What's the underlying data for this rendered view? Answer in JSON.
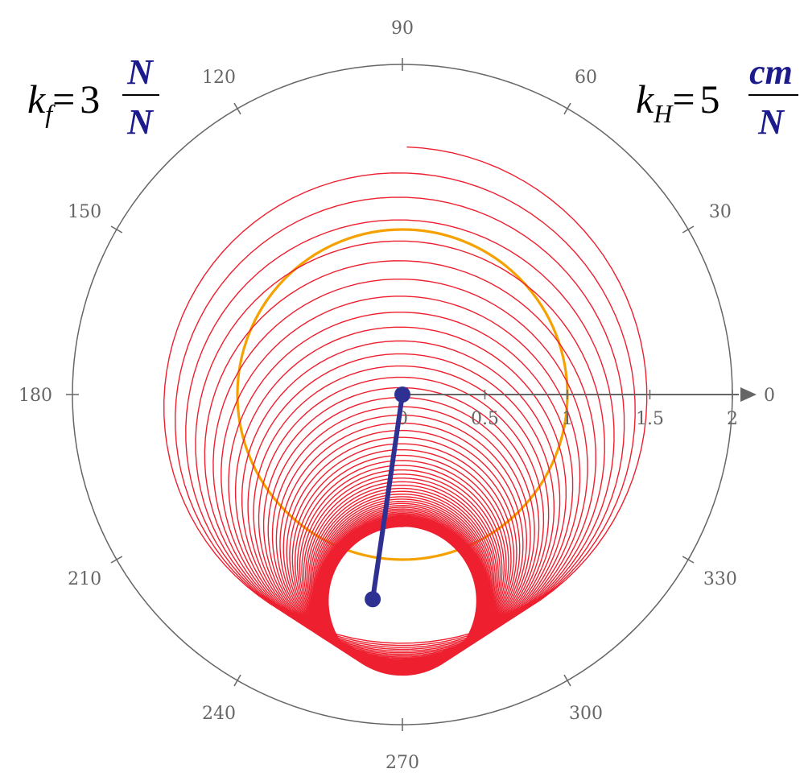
{
  "chart_data": {
    "type": "polar",
    "title": "",
    "formulas": {
      "left": {
        "symbol": "k",
        "subscript": "f",
        "equals": "=",
        "value": "3",
        "unit_numerator": "N",
        "unit_denominator": "N"
      },
      "right": {
        "symbol": "k",
        "subscript": "H",
        "equals": "=",
        "value": "5",
        "unit_numerator": "cm",
        "unit_denominator": "N"
      }
    },
    "angular_ticks_deg": [
      "0",
      "30",
      "60",
      "90",
      "120",
      "150",
      "180",
      "210",
      "240",
      "270",
      "300",
      "330"
    ],
    "radial_ticks": [
      "0",
      "0.5",
      "1",
      "1.5",
      "2"
    ],
    "radial_range": [
      0,
      2
    ],
    "grid": false,
    "reference_circle": {
      "center": [
        0,
        0
      ],
      "radius": 1
    },
    "spiral": {
      "description_values": {
        "center_start": [
          0,
          0
        ],
        "center_end": [
          0,
          -1.25
        ],
        "radius_start": 1.5,
        "radius_end": 0.45,
        "start_angle_deg": 89,
        "turns": 60
      }
    },
    "arm": {
      "start": [
        0,
        0
      ],
      "end": [
        -0.18,
        -1.24
      ]
    },
    "colors": {
      "axis": "#666666",
      "reference_circle": "#F5A100",
      "spiral": "#EE1F2F",
      "arm": "#2E3192",
      "formula_text": "#000000",
      "formula_units": "#1B1B8C"
    }
  }
}
